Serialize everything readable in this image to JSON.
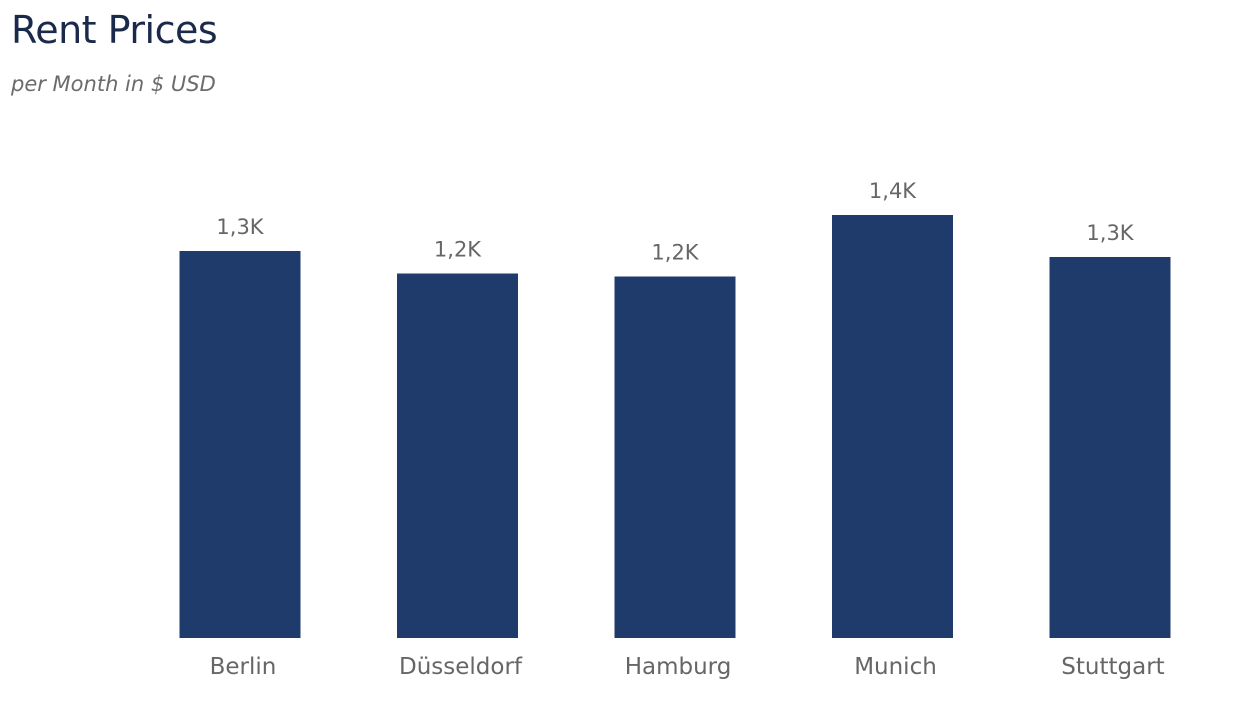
{
  "chart_data": {
    "type": "bar",
    "title": "Rent Prices",
    "subtitle": "per Month in $ USD",
    "categories": [
      "Berlin",
      "Düsseldorf",
      "Hamburg",
      "Munich",
      "Stuttgart"
    ],
    "values": [
      1290,
      1215,
      1205,
      1410,
      1270
    ],
    "data_labels": [
      "1,3K",
      "1,2K",
      "1,2K",
      "1,4K",
      "1,3K"
    ],
    "ylim": [
      0,
      1410
    ],
    "grid": false,
    "bar_color": "#1f3b6b"
  }
}
